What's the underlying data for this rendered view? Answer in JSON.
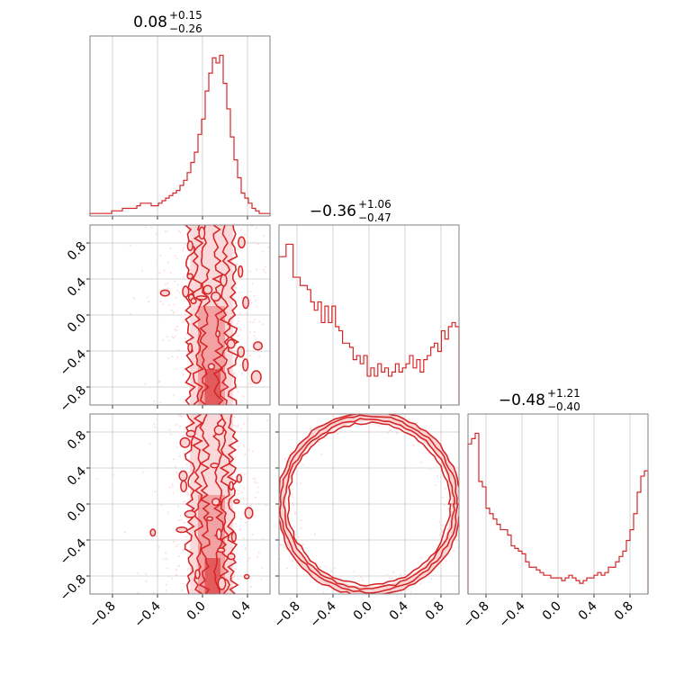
{
  "chart_data": {
    "type": "corner",
    "color": "#d62728",
    "light_color": "#fbd5d6",
    "grid": true,
    "parameters": [
      {
        "title_main": "0.08",
        "title_plus": "+0.15",
        "title_minus": "−0.26",
        "range": [
          -1.0,
          0.6
        ],
        "ticks": [
          "−0.8",
          "−0.4",
          "0.0",
          "0.4"
        ],
        "tick_values": [
          -0.8,
          -0.4,
          0.0,
          0.4
        ],
        "hist_bins": [
          -1.0,
          0.6
        ],
        "hist_values": [
          1,
          1,
          1,
          1,
          1,
          1,
          2,
          2,
          2,
          3,
          3,
          3,
          3,
          4,
          5,
          5,
          5,
          4,
          4,
          5,
          6,
          7,
          8,
          9,
          10,
          12,
          14,
          17,
          21,
          25,
          32,
          38,
          49,
          56,
          62,
          60,
          63,
          52,
          42,
          31,
          22,
          15,
          9,
          7,
          5,
          3,
          2,
          1,
          1,
          1
        ]
      },
      {
        "title_main": "−0.36",
        "title_plus": "+1.06",
        "title_minus": "−0.47",
        "range": [
          -1.0,
          1.0
        ],
        "ticks": [
          "−0.8",
          "−0.4",
          "0.0",
          "0.4",
          "0.8"
        ],
        "tick_values": [
          -0.8,
          -0.4,
          0.0,
          0.4,
          0.8
        ],
        "hist_values": [
          72,
          72,
          78,
          78,
          62,
          62,
          58,
          58,
          56,
          50,
          46,
          50,
          40,
          48,
          40,
          48,
          38,
          36,
          30,
          30,
          28,
          22,
          24,
          20,
          24,
          14,
          18,
          14,
          20,
          16,
          18,
          14,
          16,
          20,
          16,
          18,
          20,
          24,
          18,
          22,
          16,
          22,
          24,
          28,
          30,
          26,
          36,
          32,
          38,
          40,
          38
        ]
      },
      {
        "title_main": "−0.48",
        "title_plus": "+1.21",
        "title_minus": "−0.40",
        "range": [
          -1.0,
          1.0
        ],
        "ticks": [
          "−0.8",
          "−0.4",
          "0.0",
          "0.4",
          "0.8"
        ],
        "tick_values": [
          -0.8,
          -0.4,
          0.0,
          0.4,
          0.8
        ],
        "hist_values": [
          56,
          58,
          60,
          42,
          40,
          32,
          30,
          28,
          26,
          24,
          24,
          22,
          18,
          17,
          16,
          15,
          12,
          10,
          10,
          9,
          8,
          7,
          7,
          6,
          6,
          6,
          5,
          6,
          7,
          6,
          5,
          4,
          5,
          6,
          6,
          7,
          8,
          7,
          8,
          10,
          10,
          12,
          14,
          16,
          20,
          24,
          30,
          38,
          44,
          46
        ]
      }
    ],
    "pairs": [
      {
        "x_param": 0,
        "y_param": 1,
        "description": "x concentrated near 0.1, y spread over full range with higher density at extremes",
        "x_center": 0.08,
        "x_sigma": 0.1,
        "y_range": [
          -1.0,
          1.0
        ]
      },
      {
        "x_param": 0,
        "y_param": 2,
        "x_center": 0.08,
        "x_sigma": 0.1,
        "y_range": [
          -1.0,
          1.0
        ]
      },
      {
        "x_param": 1,
        "y_param": 2,
        "shape": "ring",
        "center": [
          0.0,
          0.0
        ],
        "radius": 0.95,
        "width": 0.06
      }
    ]
  }
}
